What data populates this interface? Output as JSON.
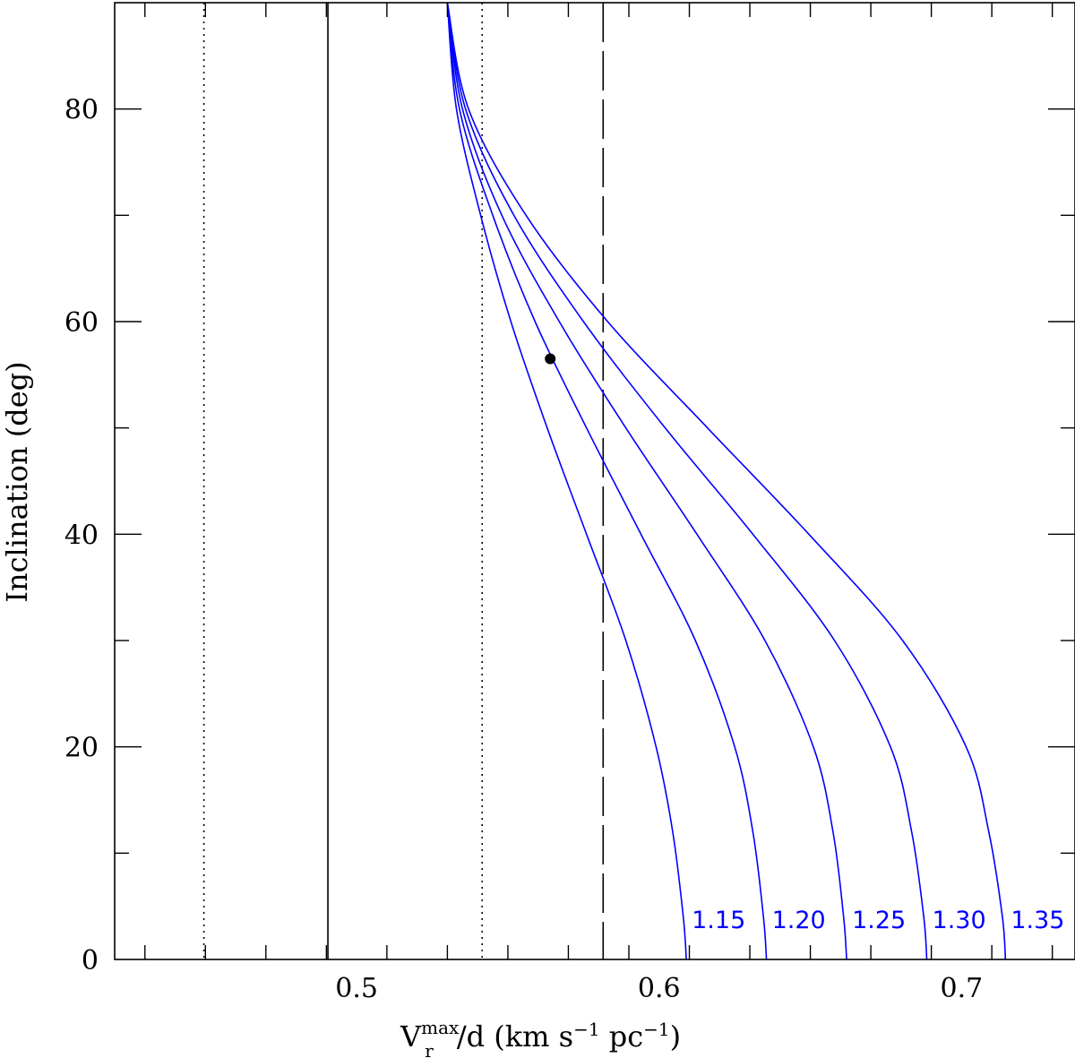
{
  "chart_data": {
    "type": "line",
    "xlabel": {
      "base": "V",
      "superscript": "max",
      "subscript": "r",
      "rest": "/d   (km s",
      "exp1": "−1",
      "mid": " pc",
      "exp2": "−1",
      "close": ")"
    },
    "ylabel": "Inclination (deg)",
    "xlim": [
      0.42,
      0.7375
    ],
    "ylim": [
      0,
      90
    ],
    "x_ticks": [
      0.5,
      0.6,
      0.7
    ],
    "x_tick_labels": [
      "0.5",
      "0.6",
      "0.7"
    ],
    "y_ticks": [
      0,
      20,
      40,
      60,
      80
    ],
    "y_tick_labels": [
      "0",
      "20",
      "40",
      "60",
      "80"
    ],
    "grid": false,
    "colors": {
      "curves": "#0000ff",
      "lines": "#000000"
    },
    "vertical_lines": [
      {
        "x": 0.4495,
        "style": "dotted"
      },
      {
        "x": 0.4905,
        "style": "solid"
      },
      {
        "x": 0.5415,
        "style": "dotted"
      },
      {
        "x": 0.5815,
        "style": "dashed"
      }
    ],
    "series": [
      {
        "label": "1.15",
        "x": [
          0.53,
          0.533,
          0.541,
          0.551,
          0.563,
          0.576,
          0.589,
          0.599,
          0.6045,
          0.608,
          0.609
        ],
        "y": [
          90,
          80,
          70,
          60,
          50,
          40,
          30,
          20,
          12,
          4,
          0
        ]
      },
      {
        "label": "1.20",
        "x": [
          0.53,
          0.534,
          0.545,
          0.559,
          0.576,
          0.594,
          0.612,
          0.625,
          0.631,
          0.6345,
          0.6355
        ],
        "y": [
          90,
          80,
          70,
          60,
          50,
          40,
          30,
          20,
          12,
          4,
          0
        ]
      },
      {
        "label": "1.25",
        "x": [
          0.53,
          0.535,
          0.548,
          0.567,
          0.589,
          0.6125,
          0.635,
          0.651,
          0.6575,
          0.661,
          0.662
        ],
        "y": [
          90,
          80,
          70,
          60,
          50,
          40,
          30,
          20,
          12,
          4,
          0
        ]
      },
      {
        "label": "1.30",
        "x": [
          0.53,
          0.536,
          0.552,
          0.575,
          0.602,
          0.631,
          0.658,
          0.6765,
          0.6835,
          0.6875,
          0.6885
        ],
        "y": [
          90,
          80,
          70,
          60,
          50,
          40,
          30,
          20,
          12,
          4,
          0
        ]
      },
      {
        "label": "1.35",
        "x": [
          0.53,
          0.537,
          0.556,
          0.583,
          0.616,
          0.6495,
          0.6805,
          0.7015,
          0.709,
          0.7135,
          0.7145
        ],
        "y": [
          90,
          80,
          70,
          60,
          50,
          40,
          30,
          20,
          12,
          4,
          0
        ]
      }
    ],
    "points": [
      {
        "x": 0.564,
        "y": 56.5
      }
    ]
  }
}
